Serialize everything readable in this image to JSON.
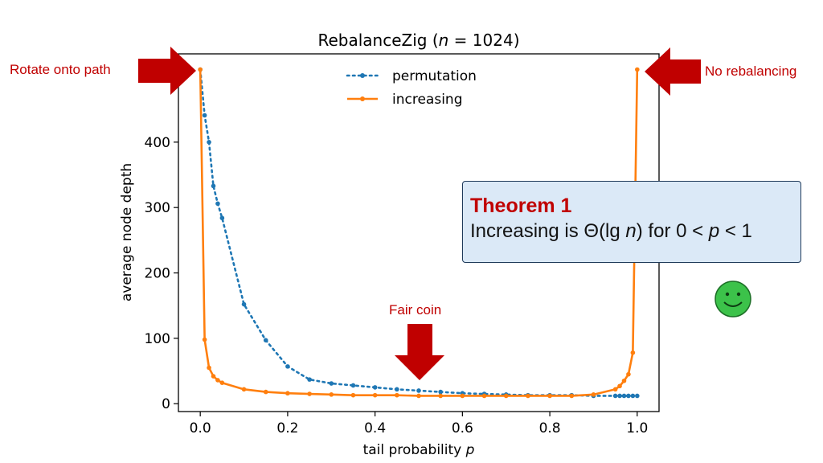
{
  "colors": {
    "permutation": "#1f77b4",
    "increasing": "#ff7f0e",
    "callout_red": "#c00000",
    "arrow_red": "#c00000",
    "smiley_fill": "#3cc24a",
    "theorem_bg": "#dbe9f7"
  },
  "chart_data": {
    "type": "line",
    "title": "RebalanceZig (n = 1024)",
    "title_parts": {
      "prefix": "RebalanceZig (",
      "var": "n",
      "suffix": " = 1024)"
    },
    "xlabel": "tail probability p",
    "xlabel_parts": {
      "prefix": "tail probability ",
      "var": "p"
    },
    "ylabel": "average node depth",
    "xlim": [
      -0.05,
      1.05
    ],
    "ylim": [
      -12,
      535
    ],
    "xticks": [
      0.0,
      0.2,
      0.4,
      0.6,
      0.8,
      1.0
    ],
    "xtick_labels": [
      "0.0",
      "0.2",
      "0.4",
      "0.6",
      "0.8",
      "1.0"
    ],
    "yticks": [
      0,
      100,
      200,
      300,
      400
    ],
    "ytick_labels": [
      "0",
      "100",
      "200",
      "300",
      "400"
    ],
    "grid": false,
    "legend_position": "top-center",
    "series": [
      {
        "name": "permutation",
        "style": "dotted",
        "x": [
          0.0,
          0.01,
          0.02,
          0.03,
          0.04,
          0.05,
          0.1,
          0.15,
          0.2,
          0.25,
          0.3,
          0.35,
          0.4,
          0.45,
          0.5,
          0.55,
          0.6,
          0.65,
          0.7,
          0.75,
          0.8,
          0.85,
          0.9,
          0.95,
          0.96,
          0.97,
          0.98,
          0.99,
          1.0
        ],
        "y": [
          511,
          441,
          400,
          333,
          306,
          284,
          152,
          97,
          57,
          37,
          31,
          28,
          25,
          22,
          20,
          18,
          16,
          15,
          14,
          13,
          13,
          13,
          12,
          12,
          12,
          12,
          12,
          12,
          12
        ]
      },
      {
        "name": "increasing",
        "style": "solid",
        "x": [
          0.0,
          0.01,
          0.02,
          0.03,
          0.04,
          0.05,
          0.1,
          0.15,
          0.2,
          0.25,
          0.3,
          0.35,
          0.4,
          0.45,
          0.5,
          0.55,
          0.6,
          0.65,
          0.7,
          0.75,
          0.8,
          0.85,
          0.9,
          0.95,
          0.96,
          0.97,
          0.98,
          0.99,
          1.0
        ],
        "y": [
          511,
          98,
          55,
          42,
          36,
          32,
          22,
          18,
          16,
          15,
          14,
          13,
          13,
          13,
          12,
          12,
          12,
          12,
          12,
          12,
          12,
          12,
          14,
          22,
          27,
          35,
          45,
          78,
          511
        ]
      }
    ]
  },
  "annotations": {
    "rotate": "Rotate onto path",
    "no_rebalancing": "No rebalancing",
    "fair_coin": "Fair coin"
  },
  "theorem": {
    "title": "Theorem 1",
    "body": "Increasing is Θ(lg n) for 0 < p < 1",
    "body_parts": {
      "a": "Increasing is Θ(lg ",
      "n": "n",
      "b": ") for 0 < ",
      "p": "p",
      "c": " < 1"
    }
  },
  "smiley_icon": "smiley-face-icon"
}
